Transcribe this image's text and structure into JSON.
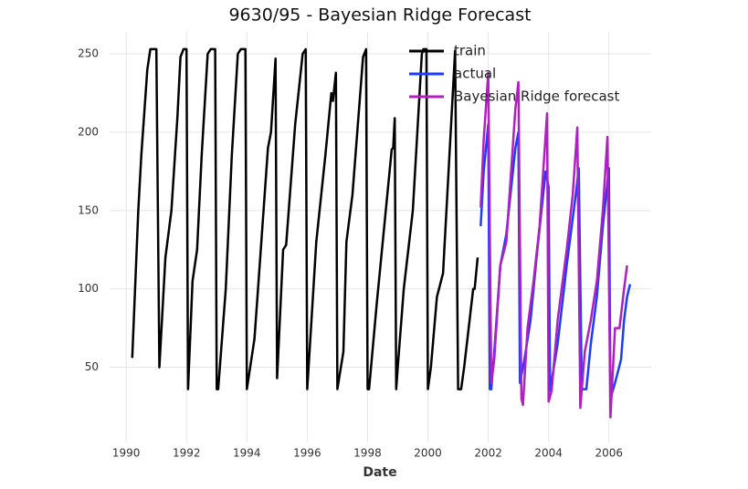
{
  "chart_data": {
    "type": "line",
    "title": "9630/95 - Bayesian Ridge Forecast",
    "xlabel": "Date",
    "xlim": [
      1989.45,
      2007.4
    ],
    "ylim": [
      2,
      264
    ],
    "xticks": [
      1990,
      1992,
      1994,
      1996,
      1998,
      2000,
      2002,
      2004,
      2006
    ],
    "yticks": [
      50,
      100,
      150,
      200,
      250
    ],
    "grid": true,
    "legend": "upper right",
    "series": [
      {
        "name": "train",
        "color": "#000000",
        "x": [
          1990.2,
          1990.4,
          1990.5,
          1990.7,
          1990.8,
          1991.0,
          1991.1,
          1991.3,
          1991.5,
          1991.7,
          1991.8,
          1991.9,
          1992.0,
          1992.05,
          1992.2,
          1992.35,
          1992.5,
          1992.7,
          1992.8,
          1992.95,
          1993.0,
          1993.05,
          1993.3,
          1993.5,
          1993.7,
          1993.8,
          1993.95,
          1994.0,
          1994.25,
          1994.35,
          1994.7,
          1994.8,
          1994.95,
          1995.0,
          1995.2,
          1995.3,
          1995.6,
          1995.85,
          1995.95,
          1996.0,
          1996.3,
          1996.6,
          1996.8,
          1996.85,
          1996.95,
          1997.0,
          1997.2,
          1997.3,
          1997.5,
          1997.85,
          1997.95,
          1998.0,
          1998.05,
          1998.3,
          1998.8,
          1998.85,
          1998.9,
          1998.95,
          1999.0,
          1999.2,
          1999.5,
          1999.8,
          1999.85,
          1999.95,
          2000.0,
          2000.1,
          2000.3,
          2000.5,
          2000.9,
          2001.0,
          2001.1,
          2001.2,
          2001.5,
          2001.55,
          2001.65
        ],
        "values": [
          56,
          150,
          185,
          240,
          253,
          253,
          50,
          120,
          150,
          210,
          248,
          253,
          253,
          36,
          105,
          125,
          185,
          250,
          253,
          253,
          36,
          36,
          100,
          185,
          250,
          253,
          253,
          36,
          68,
          95,
          190,
          200,
          247,
          43,
          125,
          128,
          205,
          250,
          253,
          36,
          130,
          185,
          225,
          220,
          238,
          36,
          60,
          130,
          160,
          248,
          253,
          36,
          36,
          90,
          189,
          190,
          209,
          36,
          50,
          100,
          150,
          250,
          253,
          253,
          36,
          50,
          95,
          110,
          252,
          36,
          36,
          50,
          100,
          100,
          120
        ]
      },
      {
        "name": "actual",
        "color": "#1a3cff",
        "x": [
          2001.75,
          2001.85,
          2002.0,
          2002.05,
          2002.1,
          2002.2,
          2002.4,
          2002.6,
          2002.9,
          2003.0,
          2003.05,
          2003.2,
          2003.4,
          2003.6,
          2003.9,
          2004.0,
          2004.05,
          2004.3,
          2004.6,
          2004.9,
          2005.0,
          2005.1,
          2005.25,
          2005.4,
          2005.6,
          2005.8,
          2006.0,
          2006.05,
          2006.2,
          2006.4,
          2006.5,
          2006.6,
          2006.7
        ],
        "values": [
          140,
          175,
          205,
          36,
          36,
          60,
          115,
          135,
          190,
          200,
          40,
          55,
          80,
          120,
          175,
          165,
          35,
          65,
          115,
          160,
          177,
          36,
          36,
          65,
          95,
          140,
          177,
          30,
          40,
          55,
          80,
          95,
          103
        ]
      },
      {
        "name": "Bayesian Ridge forecast",
        "color": "#b01fbf",
        "x": [
          2001.75,
          2001.85,
          2002.0,
          2002.1,
          2002.2,
          2002.4,
          2002.6,
          2002.9,
          2003.0,
          2003.1,
          2003.15,
          2003.3,
          2003.5,
          2003.7,
          2003.95,
          2004.0,
          2004.1,
          2004.3,
          2004.6,
          2004.8,
          2004.95,
          2005.05,
          2005.2,
          2005.4,
          2005.6,
          2005.8,
          2005.95,
          2006.05,
          2006.2,
          2006.35,
          2006.5,
          2006.6
        ],
        "values": [
          152,
          195,
          238,
          40,
          55,
          115,
          130,
          215,
          232,
          30,
          26,
          75,
          105,
          140,
          212,
          28,
          35,
          80,
          125,
          160,
          203,
          24,
          60,
          80,
          105,
          150,
          197,
          18,
          75,
          75,
          100,
          115
        ]
      }
    ]
  }
}
